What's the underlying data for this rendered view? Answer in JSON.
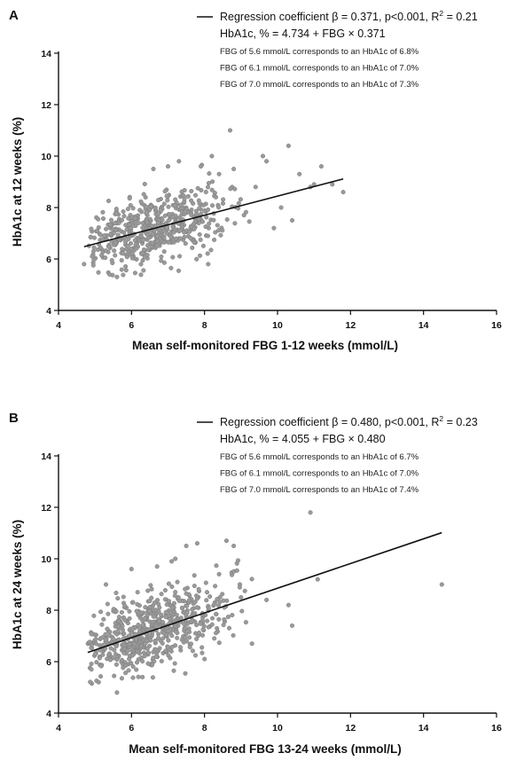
{
  "chart_data": [
    {
      "panel": "A",
      "type": "scatter",
      "xlabel": "Mean self-monitored FBG 1-12 weeks (mmol/L)",
      "ylabel": "HbA1c at 12 weeks (%)",
      "xlim": [
        4,
        16
      ],
      "ylim": [
        4,
        14
      ],
      "xticks": [
        "4",
        "6",
        "8",
        "10",
        "12",
        "14",
        "16"
      ],
      "yticks": [
        "4",
        "6",
        "8",
        "10",
        "12",
        "14"
      ],
      "legend": {
        "regression_prefix": "Regression coefficient β = 0.371, p<0.001, R",
        "regression_sup": "2",
        "regression_suffix": " = 0.21",
        "equation": "HbA1c, % = 4.734 + FBG × 0.371",
        "notes": [
          "FBG of 5.6 mmol/L corresponds to an HbA1c of 6.8%",
          "FBG of 6.1 mmol/L corresponds to an HbA1c of 7.0%",
          "FBG of 7.0 mmol/L corresponds to an HbA1c of 7.3%"
        ]
      },
      "regression": {
        "intercept": 4.734,
        "slope": 0.371,
        "x_range": [
          4.7,
          11.8
        ]
      },
      "highlight_points": [
        [
          8.7,
          11.0
        ],
        [
          10.3,
          10.4
        ],
        [
          9.6,
          10.0
        ],
        [
          11.2,
          9.6
        ],
        [
          8.2,
          10.0
        ],
        [
          7.3,
          9.8
        ],
        [
          10.9,
          8.8
        ],
        [
          11.0,
          8.9
        ],
        [
          11.8,
          8.6
        ],
        [
          11.5,
          8.9
        ],
        [
          9.9,
          7.2
        ],
        [
          10.4,
          7.5
        ],
        [
          4.7,
          5.8
        ],
        [
          5.4,
          5.4
        ],
        [
          8.1,
          5.8
        ],
        [
          8.8,
          9.5
        ],
        [
          9.7,
          9.8
        ],
        [
          8.4,
          9.3
        ],
        [
          7.9,
          9.6
        ],
        [
          6.6,
          9.5
        ],
        [
          7.0,
          9.6
        ],
        [
          10.1,
          8.0
        ],
        [
          10.6,
          9.3
        ],
        [
          9.4,
          8.8
        ]
      ],
      "cloud": {
        "n": 560,
        "x_mean": 6.6,
        "x_sd": 0.85,
        "x_min": 4.8,
        "x_max": 9.6,
        "resid_sd": 0.62,
        "y_min": 5.3,
        "y_max": 9.7,
        "seed": 12
      }
    },
    {
      "panel": "B",
      "type": "scatter",
      "xlabel": "Mean self-monitored FBG 13-24 weeks (mmol/L)",
      "ylabel": "HbA1c at 24 weeks (%)",
      "xlim": [
        4,
        16
      ],
      "ylim": [
        4,
        14
      ],
      "xticks": [
        "4",
        "6",
        "8",
        "10",
        "12",
        "14",
        "16"
      ],
      "yticks": [
        "4",
        "6",
        "8",
        "10",
        "12",
        "14"
      ],
      "legend": {
        "regression_prefix": "Regression coefficient β = 0.480, p<0.001, R",
        "regression_sup": "2",
        "regression_suffix": " = 0.23",
        "equation": "HbA1c, % = 4.055 + FBG × 0.480",
        "notes": [
          "FBG of 5.6 mmol/L corresponds to an HbA1c of 6.7%",
          "FBG of 6.1 mmol/L corresponds to an HbA1c of 7.0%",
          "FBG of 7.0 mmol/L corresponds to an HbA1c of 7.4%"
        ]
      },
      "regression": {
        "intercept": 4.055,
        "slope": 0.48,
        "x_range": [
          4.8,
          14.5
        ]
      },
      "highlight_points": [
        [
          10.9,
          11.8
        ],
        [
          14.5,
          9.0
        ],
        [
          11.1,
          9.2
        ],
        [
          10.3,
          8.2
        ],
        [
          10.4,
          7.4
        ],
        [
          9.3,
          6.7
        ],
        [
          8.6,
          10.7
        ],
        [
          8.8,
          10.5
        ],
        [
          7.5,
          10.5
        ],
        [
          7.8,
          10.6
        ],
        [
          9.0,
          8.5
        ],
        [
          5.1,
          5.2
        ],
        [
          5.6,
          4.8
        ],
        [
          4.9,
          5.7
        ],
        [
          6.0,
          9.6
        ],
        [
          6.7,
          9.7
        ],
        [
          7.2,
          10.0
        ],
        [
          8.0,
          6.1
        ],
        [
          8.4,
          9.4
        ],
        [
          9.7,
          8.4
        ],
        [
          5.3,
          9.0
        ],
        [
          6.3,
          5.4
        ],
        [
          7.1,
          9.9
        ]
      ],
      "cloud": {
        "n": 620,
        "x_mean": 6.5,
        "x_sd": 0.9,
        "x_min": 4.8,
        "x_max": 9.4,
        "resid_sd": 0.7,
        "y_min": 5.0,
        "y_max": 10.3,
        "seed": 24
      }
    }
  ]
}
